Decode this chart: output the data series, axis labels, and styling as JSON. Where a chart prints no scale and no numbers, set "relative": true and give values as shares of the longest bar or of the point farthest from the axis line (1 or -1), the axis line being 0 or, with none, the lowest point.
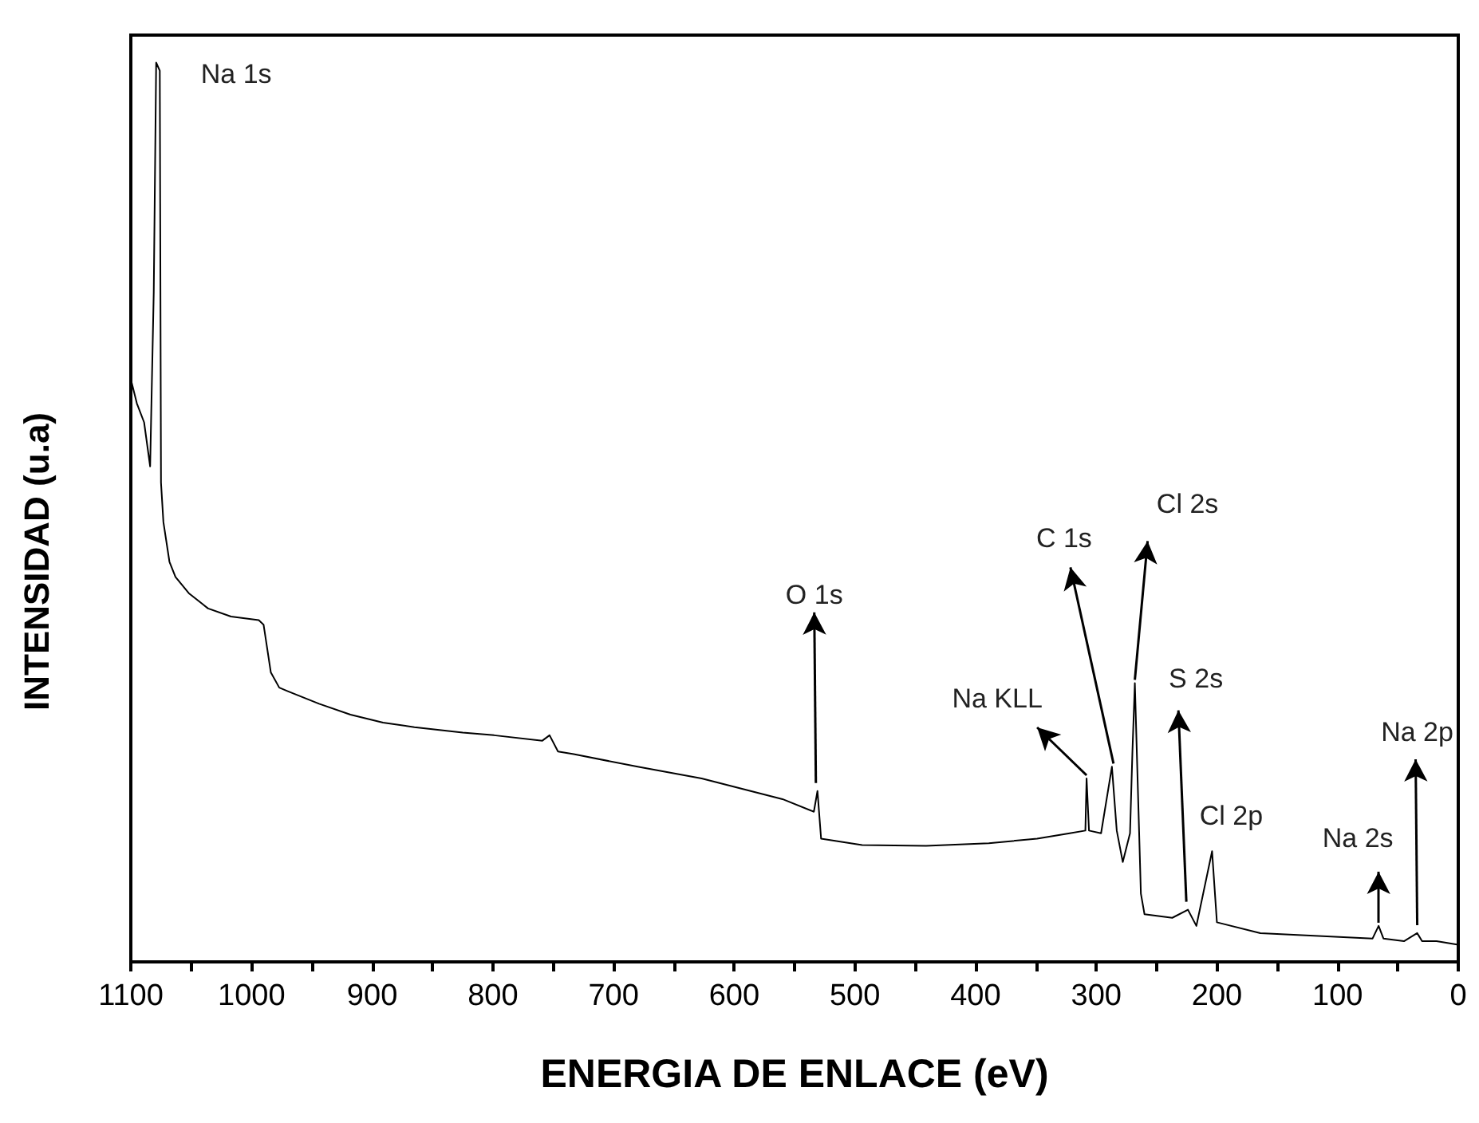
{
  "chart_data": {
    "type": "line",
    "xlabel": "ENERGIA DE ENLACE (eV)",
    "ylabel": "INTENSIDAD (u.a)",
    "relative": true,
    "marker": "none",
    "xlim": [
      1100,
      0
    ],
    "xticks": [
      1100,
      {
        "value": 1050,
        "label": null
      },
      1000,
      {
        "value": 950,
        "label": null
      },
      900,
      {
        "value": 850,
        "label": null
      },
      800,
      {
        "value": 750,
        "label": null
      },
      700,
      {
        "value": 650,
        "label": null
      },
      600,
      {
        "value": 550,
        "label": null
      },
      500,
      {
        "value": 450,
        "label": null
      },
      400,
      {
        "value": 350,
        "label": null
      },
      300,
      {
        "value": 250,
        "label": null
      },
      200,
      {
        "value": 150,
        "label": null
      },
      100,
      {
        "value": 50,
        "label": null
      },
      0
    ],
    "series": [
      {
        "color": "#000000",
        "x": [
          1100,
          1095,
          1089,
          1084,
          1081,
          1079,
          1076,
          1075,
          1073,
          1068,
          1063,
          1052,
          1036,
          1017,
          994,
          990,
          984,
          977,
          970,
          944,
          918,
          891,
          865,
          825,
          799,
          759,
          753,
          746,
          733,
          680,
          627,
          560,
          534,
          531,
          528,
          494,
          441,
          389,
          349,
          322,
          309,
          308,
          306,
          296,
          287,
          283,
          278,
          272,
          270,
          268,
          263,
          260,
          237,
          224,
          217,
          204,
          200,
          164,
          71,
          66,
          62,
          45,
          34,
          30,
          18,
          0
        ],
        "values": [
          0.648,
          0.621,
          0.6,
          0.551,
          0.745,
          1.0,
          0.991,
          0.533,
          0.489,
          0.445,
          0.428,
          0.41,
          0.393,
          0.384,
          0.38,
          0.375,
          0.322,
          0.305,
          0.301,
          0.287,
          0.275,
          0.266,
          0.261,
          0.255,
          0.252,
          0.246,
          0.252,
          0.234,
          0.231,
          0.217,
          0.204,
          0.181,
          0.167,
          0.19,
          0.137,
          0.13,
          0.129,
          0.132,
          0.137,
          0.143,
          0.146,
          0.204,
          0.146,
          0.143,
          0.217,
          0.146,
          0.111,
          0.143,
          0.234,
          0.31,
          0.076,
          0.053,
          0.049,
          0.058,
          0.04,
          0.123,
          0.044,
          0.032,
          0.026,
          0.04,
          0.026,
          0.023,
          0.032,
          0.023,
          0.023,
          0.019
        ]
      }
    ],
    "annotations": [
      {
        "text": "Na 1s",
        "x": 1079,
        "y": 1.0
      },
      {
        "text": "O 1s",
        "x": 531,
        "y": 0.19
      },
      {
        "text": "Na KLL",
        "x": 308,
        "y": 0.204
      },
      {
        "text": "C 1s",
        "x": 287,
        "y": 0.217
      },
      {
        "text": "Cl 2s",
        "x": 268,
        "y": 0.31
      },
      {
        "text": "S 2s",
        "x": 224,
        "y": 0.058
      },
      {
        "text": "Cl 2p",
        "x": 204,
        "y": 0.123
      },
      {
        "text": "Na 2s",
        "x": 66,
        "y": 0.04
      },
      {
        "text": "Na 2p",
        "x": 34,
        "y": 0.032
      }
    ]
  }
}
